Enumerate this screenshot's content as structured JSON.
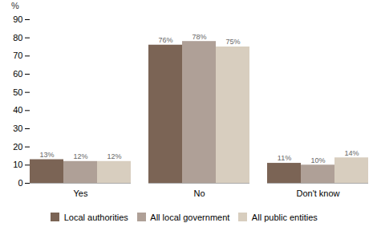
{
  "chart_data": {
    "type": "bar",
    "categories": [
      "Yes",
      "No",
      "Don't know"
    ],
    "series": [
      {
        "name": "Local authorities",
        "color": "#7B6455",
        "values": [
          13,
          76,
          11
        ],
        "value_labels": [
          "13%",
          "76%",
          "11%"
        ]
      },
      {
        "name": "All local government",
        "color": "#AFA097",
        "values": [
          12,
          78,
          10
        ],
        "value_labels": [
          "12%",
          "78%",
          "10%"
        ]
      },
      {
        "name": "All public entities",
        "color": "#D8CEBF",
        "values": [
          12,
          75,
          14
        ],
        "value_labels": [
          "12%",
          "75%",
          "14%"
        ]
      }
    ],
    "ylabel": "%",
    "ylim": [
      0,
      90
    ],
    "yticks": [
      0,
      10,
      20,
      30,
      40,
      50,
      60,
      70,
      80,
      90
    ],
    "grid": false,
    "legend": "bottom",
    "data_labels": true
  }
}
